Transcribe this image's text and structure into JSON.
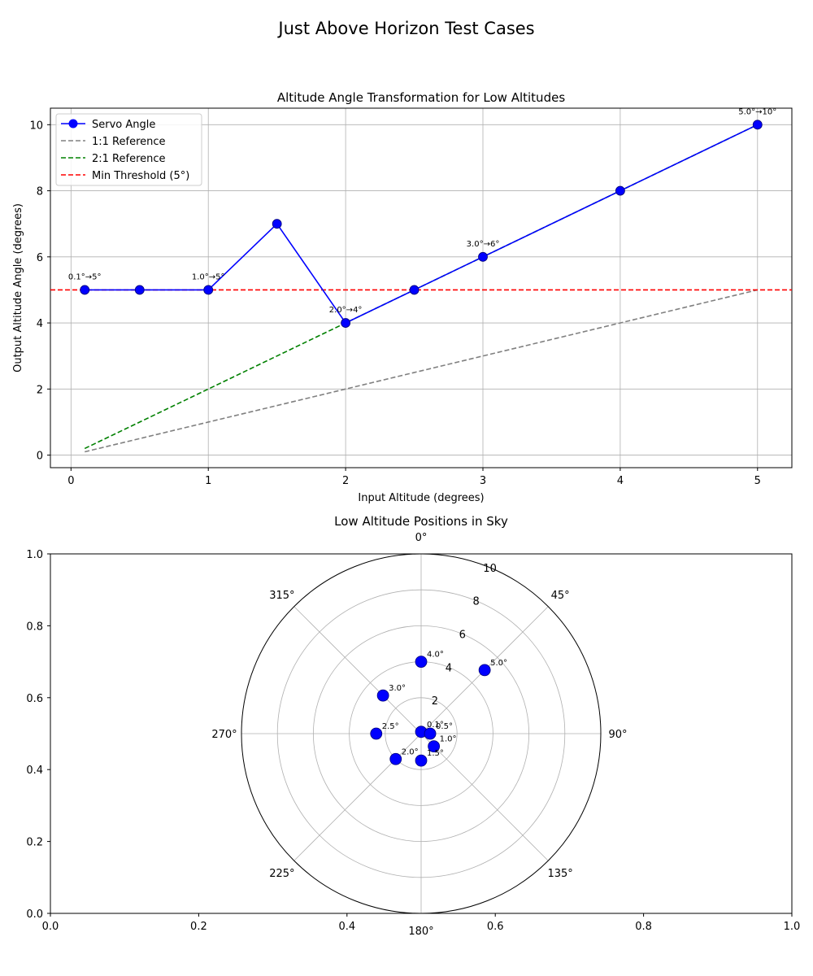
{
  "figure": {
    "suptitle": "Just Above Horizon Test Cases"
  },
  "chart_data": [
    {
      "type": "line",
      "title": "Altitude Angle Transformation for Low Altitudes",
      "xlabel": "Input Altitude (degrees)",
      "ylabel": "Output Altitude Angle (degrees)",
      "xlim": [
        -0.15,
        5.25
      ],
      "ylim": [
        -0.38,
        10.5
      ],
      "xticks": [
        0,
        1,
        2,
        3,
        4,
        5
      ],
      "yticks": [
        0,
        2,
        4,
        6,
        8,
        10
      ],
      "grid": true,
      "legend_position": "upper-left",
      "series": [
        {
          "name": "Servo Angle",
          "color": "#0000ff",
          "style": "solid-marker",
          "x": [
            0.1,
            0.5,
            1.0,
            1.5,
            2.0,
            2.5,
            3.0,
            4.0,
            5.0
          ],
          "y": [
            5,
            5,
            5,
            7,
            4,
            5,
            6,
            8,
            10
          ]
        },
        {
          "name": "1:1 Reference",
          "color": "#808080",
          "style": "dashed",
          "x": [
            0.1,
            5.0
          ],
          "y": [
            0.1,
            5.0
          ]
        },
        {
          "name": "2:1 Reference",
          "color": "#008000",
          "style": "dashed",
          "x": [
            0.1,
            5.0
          ],
          "y": [
            0.2,
            10.0
          ]
        },
        {
          "name": "Min Threshold (5°)",
          "color": "#ff0000",
          "style": "dashed-horizontal",
          "y_value": 5
        }
      ],
      "annotations": [
        {
          "x": 0.1,
          "y": 5,
          "text": "0.1°→5°"
        },
        {
          "x": 1.0,
          "y": 5,
          "text": "1.0°→5°"
        },
        {
          "x": 2.0,
          "y": 4,
          "text": "2.0°→4°"
        },
        {
          "x": 3.0,
          "y": 6,
          "text": "3.0°→6°"
        },
        {
          "x": 5.0,
          "y": 10,
          "text": "5.0°→10°"
        }
      ]
    },
    {
      "type": "scatter",
      "subtype": "polar",
      "title": "Low Altitude Positions in Sky",
      "background_axes": {
        "xlim": [
          0.0,
          1.0
        ],
        "ylim": [
          0.0,
          1.0
        ],
        "xticks": [
          "0.0",
          "0.2",
          "0.4",
          "0.6",
          "0.8",
          "1.0"
        ],
        "yticks": [
          "0.0",
          "0.2",
          "0.4",
          "0.6",
          "0.8",
          "1.0"
        ]
      },
      "theta_zero": "north",
      "theta_direction": "clockwise",
      "rlim": [
        0,
        10
      ],
      "rticks": [
        "2",
        "4",
        "6",
        "8",
        "10"
      ],
      "theta_labels": [
        "0°",
        "45°",
        "90°",
        "135°",
        "180°",
        "225°",
        "270°",
        "315°"
      ],
      "marker_color": "#0000ff",
      "points": [
        {
          "label": "0.1°",
          "azimuth": 0,
          "r": 0.1
        },
        {
          "label": "0.5°",
          "azimuth": 90,
          "r": 0.5
        },
        {
          "label": "1.0°",
          "azimuth": 135,
          "r": 1.0
        },
        {
          "label": "1.5°",
          "azimuth": 180,
          "r": 1.5
        },
        {
          "label": "2.0°",
          "azimuth": 225,
          "r": 2.0
        },
        {
          "label": "2.5°",
          "azimuth": 270,
          "r": 2.5
        },
        {
          "label": "3.0°",
          "azimuth": 315,
          "r": 3.0
        },
        {
          "label": "4.0°",
          "azimuth": 0,
          "r": 4.0
        },
        {
          "label": "5.0°",
          "azimuth": 45,
          "r": 5.0
        }
      ]
    }
  ]
}
